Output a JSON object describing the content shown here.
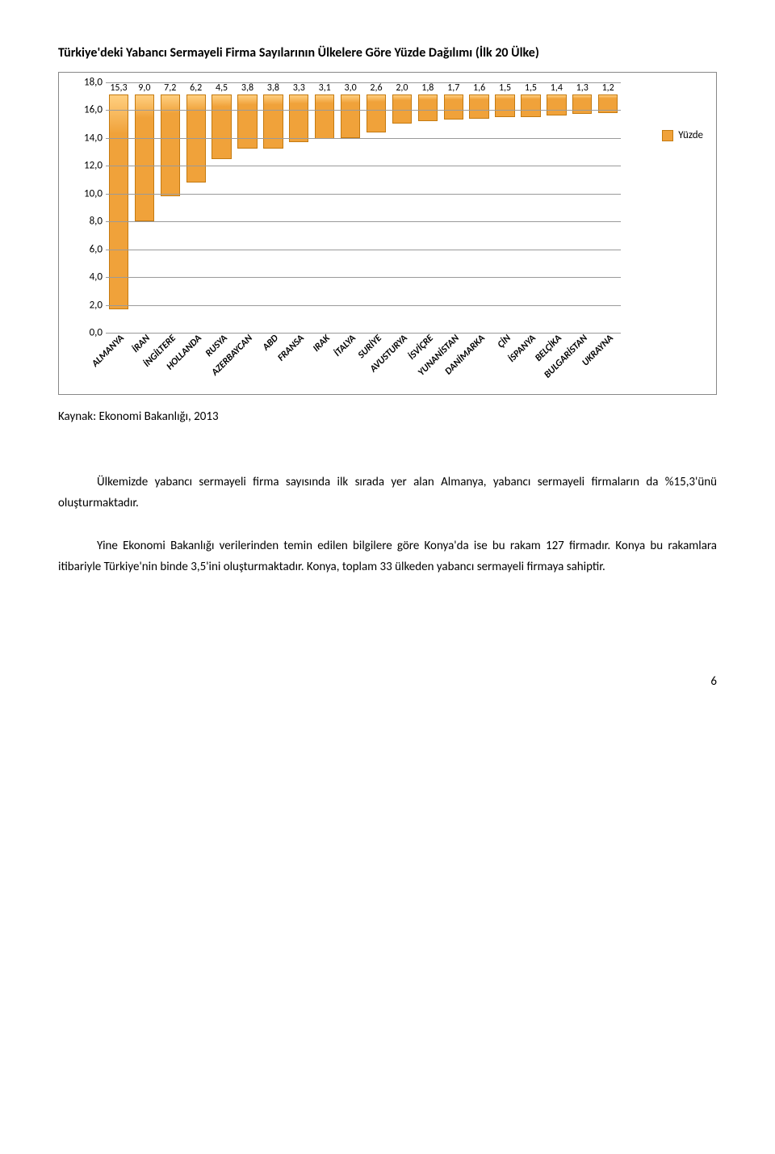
{
  "title": "Türkiye'deki Yabancı Sermayeli Firma Sayılarının Ülkelere Göre Yüzde Dağılımı (İlk 20 Ülke)",
  "bar_chart": {
    "type": "bar",
    "categories": [
      "ALMANYA",
      "İRAN",
      "İNGİLTERE",
      "HOLLANDA",
      "RUSYA",
      "AZERBAYCAN",
      "ABD",
      "FRANSA",
      "IRAK",
      "İTALYA",
      "SURİYE",
      "AVUSTURYA",
      "İSVİÇRE",
      "YUNANİSTAN",
      "DANİMARKA",
      "ÇİN",
      "İSPANYA",
      "BELÇİKA",
      "BULGARİSTAN",
      "UKRAYNA"
    ],
    "values": [
      15.3,
      9.0,
      7.2,
      6.2,
      4.5,
      3.8,
      3.8,
      3.3,
      3.1,
      3.0,
      2.6,
      2.0,
      1.8,
      1.7,
      1.6,
      1.5,
      1.5,
      1.4,
      1.3,
      1.2
    ],
    "data_labels": [
      "15,3",
      "9,0",
      "7,2",
      "6,2",
      "4,5",
      "3,8",
      "3,8",
      "3,3",
      "3,1",
      "3,0",
      "2,6",
      "2,0",
      "1,8",
      "1,7",
      "1,6",
      "1,5",
      "1,5",
      "1,4",
      "1,3",
      "1,2"
    ],
    "bar_fill": "#f0a23a",
    "bar_border": "#c47a10",
    "ylim": [
      0,
      18
    ],
    "ytick_step": 2,
    "yticks": [
      "0,0",
      "2,0",
      "4,0",
      "6,0",
      "8,0",
      "10,0",
      "12,0",
      "14,0",
      "16,0",
      "18,0"
    ],
    "grid_color": "#9a9a9a",
    "axis_color": "#9a9a9a",
    "legend_label": "Yüzde",
    "label_fontsize": 12,
    "tick_fontsize": 13,
    "background_color": "#ffffff",
    "bar_width": 0.7
  },
  "source_line": "Kaynak: Ekonomi Bakanlığı, 2013",
  "paragraph1": "Ülkemizde yabancı sermayeli firma sayısında ilk sırada yer alan Almanya, yabancı sermayeli firmaların da %15,3'ünü oluşturmaktadır.",
  "paragraph2": "Yine Ekonomi Bakanlığı verilerinden temin edilen bilgilere göre Konya'da ise bu rakam 127 firmadır. Konya bu rakamlara itibariyle Türkiye'nin binde 3,5'ini oluşturmaktadır. Konya, toplam 33 ülkeden yabancı sermayeli firmaya sahiptir.",
  "page_number": "6"
}
